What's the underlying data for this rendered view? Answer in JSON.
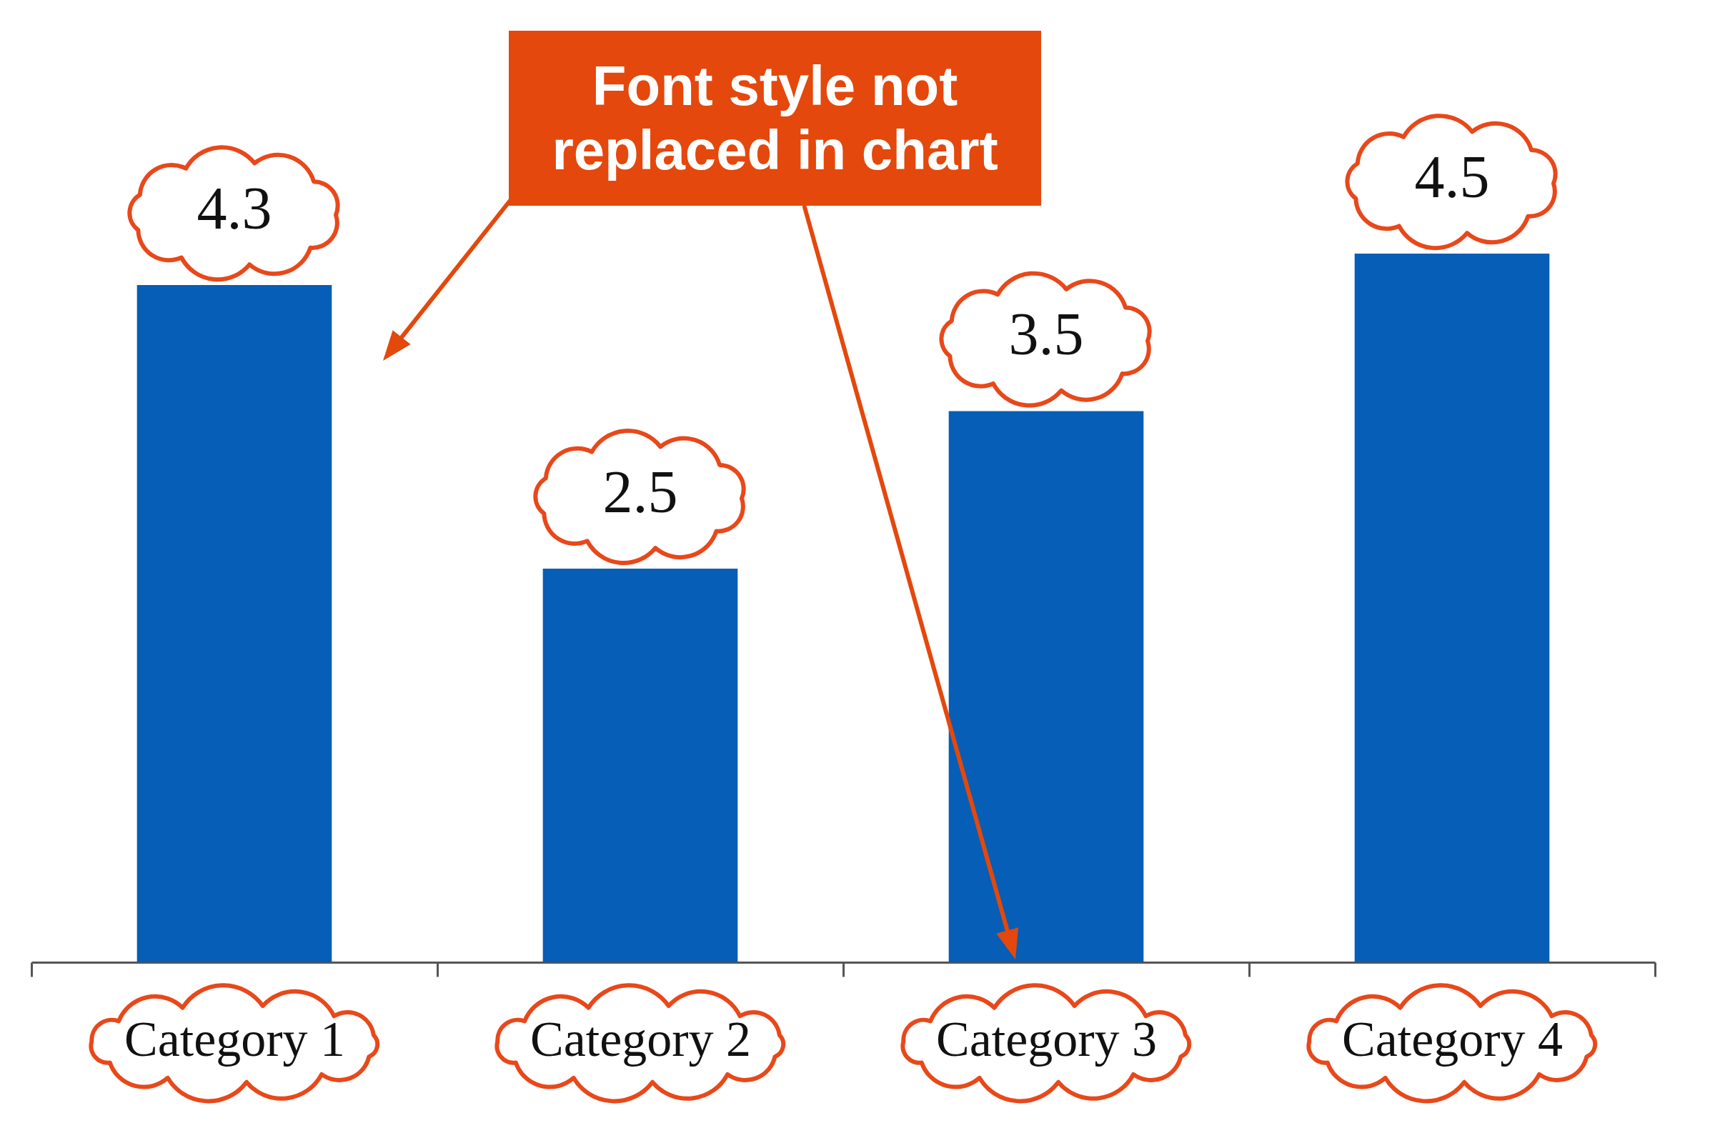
{
  "chart_data": {
    "type": "bar",
    "categories": [
      "Category 1",
      "Category 2",
      "Category 3",
      "Category 4"
    ],
    "values": [
      4.3,
      2.5,
      3.5,
      4.5
    ],
    "color": "#065eb6",
    "data_labels": true,
    "tick_labels": "x",
    "annotations": [
      "Font style not replaced in chart"
    ]
  }
}
